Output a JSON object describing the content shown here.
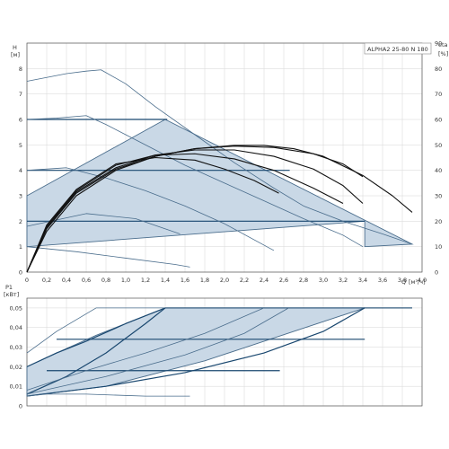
{
  "chart_data": [
    {
      "type": "line",
      "name": "head",
      "model_label": "ALPHA2 25-80 N 180",
      "y_label": "H",
      "y_unit": "[м]",
      "y2_label": "eta",
      "y2_unit": "[%]",
      "x_label": "Q",
      "x_unit": "[м³/ч]",
      "xlim": [
        0,
        4.0
      ],
      "ylim": [
        0,
        9
      ],
      "y2lim": [
        0,
        90
      ],
      "x_ticks": [
        "0",
        "0,2",
        "0,4",
        "0,6",
        "0,8",
        "1,0",
        "1,2",
        "1,4",
        "1,6",
        "1,8",
        "2,0",
        "2,2",
        "2,4",
        "2,6",
        "2,8",
        "3,0",
        "3,2",
        "3,4",
        "3,6",
        "3,8",
        "4,0"
      ],
      "y_ticks": [
        "0",
        "1",
        "2",
        "3",
        "4",
        "5",
        "6",
        "7",
        "8"
      ],
      "y2_ticks": [
        "0",
        "10",
        "20",
        "30",
        "40",
        "50",
        "60",
        "70",
        "80",
        "90"
      ],
      "grid": true,
      "colors": {
        "curve": "#4a6d8c",
        "band": "#19476f",
        "fill": "#c9d8e6",
        "eff": "#111111",
        "grid": "#d6d6d6",
        "axis": "#555555"
      },
      "region": [
        [
          0,
          1
        ],
        [
          0,
          3
        ],
        [
          1.4,
          6
        ],
        [
          3.9,
          1.1
        ],
        [
          3.42,
          1
        ],
        [
          3.42,
          2
        ],
        [
          0,
          1
        ]
      ],
      "bands": [
        {
          "level": 6,
          "x": [
            0,
            1.42
          ]
        },
        {
          "level": 4,
          "x": [
            0,
            2.66
          ]
        },
        {
          "level": 2,
          "x": [
            0,
            3.42
          ]
        }
      ],
      "series": [
        {
          "x": [
            0,
            0.2,
            0.4,
            0.6,
            0.75,
            1.0,
            1.3,
            1.7,
            2.1,
            2.5,
            2.8,
            3.2,
            3.6,
            3.9
          ],
          "y": [
            7.5,
            7.65,
            7.8,
            7.9,
            7.95,
            7.4,
            6.5,
            5.4,
            4.3,
            3.3,
            2.6,
            2.0,
            1.5,
            1.1
          ],
          "style": "curve"
        },
        {
          "x": [
            0,
            0.3,
            0.6,
            0.8,
            1.0,
            1.3,
            1.6,
            2.0,
            2.4,
            2.8,
            3.2,
            3.4
          ],
          "y": [
            6.0,
            6.05,
            6.15,
            5.8,
            5.4,
            4.8,
            4.2,
            3.5,
            2.8,
            2.1,
            1.45,
            1.0
          ],
          "style": "curve"
        },
        {
          "x": [
            0,
            0.4,
            0.8,
            1.2,
            1.6,
            2.0,
            2.5
          ],
          "y": [
            4.0,
            4.1,
            3.7,
            3.2,
            2.6,
            1.9,
            0.85
          ],
          "style": "curve"
        },
        {
          "x": [
            0,
            0.5,
            1.0,
            1.5,
            1.65
          ],
          "y": [
            1.0,
            0.8,
            0.55,
            0.3,
            0.2
          ],
          "style": "curve"
        },
        {
          "x": [
            0,
            0.6,
            1.1,
            1.55
          ],
          "y": [
            1.8,
            2.3,
            2.1,
            1.5
          ],
          "style": "curve"
        },
        {
          "x": [
            0,
            0.2,
            0.5,
            0.9,
            1.3,
            1.7,
            2.1,
            2.4,
            2.7,
            3.0,
            3.4,
            3.7,
            3.9
          ],
          "y": [
            0,
            1.6,
            3.0,
            4.0,
            4.55,
            4.85,
            4.98,
            4.98,
            4.85,
            4.55,
            3.8,
            3.0,
            2.35
          ],
          "style": "eff"
        },
        {
          "x": [
            0,
            0.2,
            0.5,
            0.9,
            1.3,
            1.7,
            2.1,
            2.5,
            2.9,
            3.2,
            3.4
          ],
          "y": [
            0,
            1.7,
            3.1,
            4.05,
            4.55,
            4.85,
            4.95,
            4.9,
            4.65,
            4.25,
            3.75
          ],
          "style": "eff"
        },
        {
          "x": [
            0,
            0.2,
            0.5,
            0.9,
            1.3,
            1.7,
            2.1,
            2.5,
            2.9,
            3.2,
            3.4
          ],
          "y": [
            0,
            1.75,
            3.15,
            4.1,
            4.6,
            4.8,
            4.8,
            4.55,
            4.05,
            3.4,
            2.7
          ],
          "style": "eff"
        },
        {
          "x": [
            0,
            0.2,
            0.5,
            0.9,
            1.3,
            1.7,
            2.1,
            2.5,
            2.9,
            3.2
          ],
          "y": [
            0,
            1.8,
            3.2,
            4.2,
            4.6,
            4.65,
            4.45,
            4.0,
            3.3,
            2.7
          ],
          "style": "eff"
        },
        {
          "x": [
            0,
            0.2,
            0.5,
            0.9,
            1.3,
            1.7,
            2.0,
            2.3,
            2.55
          ],
          "y": [
            0,
            1.85,
            3.25,
            4.25,
            4.5,
            4.4,
            4.05,
            3.6,
            3.1
          ],
          "style": "eff"
        }
      ]
    },
    {
      "type": "line",
      "name": "power",
      "y_label": "P1",
      "y_unit": "[кВт]",
      "xlim": [
        0,
        4.0
      ],
      "ylim": [
        0,
        0.055
      ],
      "y_ticks": [
        "0",
        "0,01",
        "0,02",
        "0,03",
        "0,04",
        "0,05"
      ],
      "grid": true,
      "region": [
        [
          0,
          0.005
        ],
        [
          0,
          0.02
        ],
        [
          0.3,
          0.027
        ],
        [
          0.7,
          0.036
        ],
        [
          1.4,
          0.05
        ],
        [
          3.9,
          0.05
        ],
        [
          3.42,
          0.05
        ],
        [
          1.8,
          0.023
        ],
        [
          0.8,
          0.01
        ],
        [
          0,
          0.005
        ]
      ],
      "bands": [
        {
          "level": 0.05,
          "x": [
            1.4,
            3.9
          ]
        },
        {
          "level": 0.034,
          "x": [
            0.3,
            3.42
          ]
        },
        {
          "level": 0.018,
          "x": [
            0.2,
            2.56
          ]
        }
      ],
      "series": [
        {
          "x": [
            0,
            0.3,
            0.7,
            0.75,
            3.9
          ],
          "y": [
            0.027,
            0.038,
            0.05,
            0.05,
            0.05
          ],
          "style": "curve"
        },
        {
          "x": [
            0,
            0.3,
            0.6,
            1.0,
            1.4
          ],
          "y": [
            0.02,
            0.027,
            0.033,
            0.042,
            0.05
          ],
          "style": "band"
        },
        {
          "x": [
            0,
            0.4,
            0.8,
            1.2,
            1.4
          ],
          "y": [
            0.006,
            0.015,
            0.027,
            0.042,
            0.05
          ],
          "style": "band"
        },
        {
          "x": [
            0,
            0.8,
            1.6,
            2.4,
            3.0,
            3.42
          ],
          "y": [
            0.005,
            0.01,
            0.017,
            0.027,
            0.038,
            0.05
          ],
          "style": "band"
        },
        {
          "x": [
            0,
            0.6,
            1.2,
            1.8,
            2.4
          ],
          "y": [
            0.008,
            0.018,
            0.027,
            0.037,
            0.05
          ],
          "style": "curve"
        },
        {
          "x": [
            0,
            0.8,
            1.6,
            2.2,
            2.65
          ],
          "y": [
            0.006,
            0.015,
            0.026,
            0.037,
            0.05
          ],
          "style": "curve"
        },
        {
          "x": [
            0,
            0.2,
            0.6,
            1.2,
            1.65
          ],
          "y": [
            0.005,
            0.006,
            0.006,
            0.005,
            0.005
          ],
          "style": "curve"
        }
      ]
    }
  ]
}
